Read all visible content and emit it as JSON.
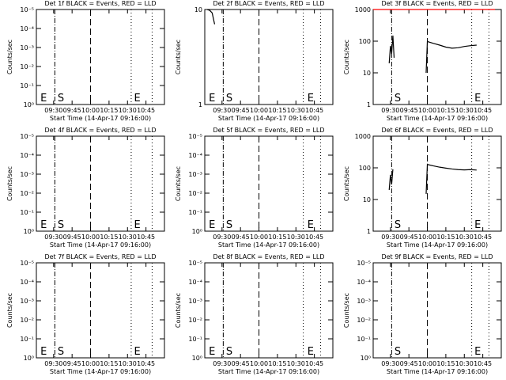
{
  "chart_data": [
    {
      "type": "line",
      "title": "Det 1f BLACK = Events, RED = LLD",
      "xlabel": "Start Time (14-Apr-17 09:16:00)",
      "ylabel": "Counts/sec",
      "xlim": [
        "09:16",
        "11:00"
      ],
      "xticks": [
        "09:30",
        "09:45",
        "10:00",
        "10:15",
        "10:30",
        "10:45"
      ],
      "ylim": [
        1,
        1e-05
      ],
      "log_y": true,
      "yticks": [
        {
          "value": 1e-05,
          "label": "10⁻⁵"
        },
        {
          "value": 0.0001,
          "label": "10⁻⁴"
        },
        {
          "value": 0.001,
          "label": "10⁻³"
        },
        {
          "value": 0.01,
          "label": "10⁻²"
        },
        {
          "value": 0.1,
          "label": "10⁻¹"
        },
        {
          "value": 1,
          "label": "10⁰"
        }
      ],
      "vlines": [
        {
          "x": "09:31",
          "style": "dashdot"
        },
        {
          "x": "10:00",
          "style": "dashed"
        },
        {
          "x": "10:33",
          "style": "dotted"
        },
        {
          "x": "10:50",
          "style": "dotted"
        }
      ],
      "annotations": [
        {
          "text": "E",
          "x": "09:18"
        },
        {
          "text": "S",
          "x": "09:32"
        },
        {
          "text": "E",
          "x": "10:34"
        }
      ],
      "series": []
    },
    {
      "type": "line",
      "title": "Det 2f BLACK = Events, RED = LLD",
      "xlabel": "Start Time (14-Apr-17 09:16:00)",
      "ylabel": "Counts/sec",
      "xlim": [
        "09:16",
        "11:00"
      ],
      "xticks": [
        "09:30",
        "09:45",
        "10:00",
        "10:15",
        "10:30",
        "10:45"
      ],
      "ylim": [
        1,
        10
      ],
      "log_y": true,
      "yticks": [
        1,
        10
      ],
      "vlines": [
        {
          "x": "09:31",
          "style": "dashdot"
        },
        {
          "x": "10:00",
          "style": "dashed"
        },
        {
          "x": "10:36",
          "style": "dotted"
        },
        {
          "x": "10:50",
          "style": "dotted"
        }
      ],
      "annotations": [
        {
          "text": "E",
          "x": "09:18"
        },
        {
          "text": "S",
          "x": "09:32"
        },
        {
          "text": "E",
          "x": "10:38"
        }
      ],
      "series": [
        {
          "color": "#000000",
          "x": [
            "09:18",
            "09:20",
            "09:22",
            "09:24"
          ],
          "values": [
            10,
            9.8,
            9.2,
            7
          ]
        }
      ]
    },
    {
      "type": "line",
      "title": "Det 3f BLACK = Events, RED = LLD",
      "xlabel": "Start Time (14-Apr-17 09:16:00)",
      "ylabel": "Counts/sec",
      "xlim": [
        "09:16",
        "11:00"
      ],
      "xticks": [
        "09:30",
        "09:45",
        "10:00",
        "10:15",
        "10:30",
        "10:45"
      ],
      "ylim": [
        1,
        1000
      ],
      "log_y": true,
      "yticks": [
        1,
        10,
        100,
        1000
      ],
      "vlines": [
        {
          "x": "09:31",
          "style": "dashdot"
        },
        {
          "x": "10:00",
          "style": "dashed"
        },
        {
          "x": "10:36",
          "style": "dotted"
        },
        {
          "x": "10:50",
          "style": "dotted"
        }
      ],
      "annotations": [
        {
          "text": "S",
          "x": "09:32"
        },
        {
          "text": "E",
          "x": "10:37"
        }
      ],
      "series": [
        {
          "color": "#ff0000",
          "x": [
            "09:16",
            "10:55"
          ],
          "values": [
            1000,
            1000
          ]
        },
        {
          "color": "#000000",
          "x": [
            "09:29",
            "09:30",
            "09:31",
            "09:32",
            "09:33",
            "09:34",
            "09:59",
            "10:00",
            "10:01",
            "10:05",
            "10:10",
            "10:15",
            "10:20",
            "10:25",
            "10:30",
            "10:35",
            "10:40"
          ],
          "values": [
            20,
            70,
            40,
            150,
            30,
            null,
            10,
            100,
            95,
            85,
            75,
            65,
            60,
            62,
            68,
            72,
            75
          ]
        }
      ]
    },
    {
      "type": "line",
      "title": "Det 4f BLACK = Events, RED = LLD",
      "xlabel": "Start Time (14-Apr-17 09:16:00)",
      "ylabel": "Counts/sec",
      "xlim": [
        "09:16",
        "11:00"
      ],
      "xticks": [
        "09:30",
        "09:45",
        "10:00",
        "10:15",
        "10:30",
        "10:45"
      ],
      "ylim": [
        1,
        1e-05
      ],
      "log_y": true,
      "yticks": [
        {
          "value": 1e-05,
          "label": "10⁻⁵"
        },
        {
          "value": 0.0001,
          "label": "10⁻⁴"
        },
        {
          "value": 0.001,
          "label": "10⁻³"
        },
        {
          "value": 0.01,
          "label": "10⁻²"
        },
        {
          "value": 0.1,
          "label": "10⁻¹"
        },
        {
          "value": 1,
          "label": "10⁰"
        }
      ],
      "vlines": [
        {
          "x": "09:31",
          "style": "dashdot"
        },
        {
          "x": "10:00",
          "style": "dashed"
        },
        {
          "x": "10:33",
          "style": "dotted"
        },
        {
          "x": "10:50",
          "style": "dotted"
        }
      ],
      "annotations": [
        {
          "text": "E",
          "x": "09:18"
        },
        {
          "text": "S",
          "x": "09:32"
        },
        {
          "text": "E",
          "x": "10:34"
        }
      ],
      "series": []
    },
    {
      "type": "line",
      "title": "Det 5f BLACK = Events, RED = LLD",
      "xlabel": "Start Time (14-Apr-17 09:16:00)",
      "ylabel": "Counts/sec",
      "xlim": [
        "09:16",
        "11:00"
      ],
      "xticks": [
        "09:30",
        "09:45",
        "10:00",
        "10:15",
        "10:30",
        "10:45"
      ],
      "ylim": [
        1,
        1e-05
      ],
      "log_y": true,
      "yticks": [
        {
          "value": 1e-05,
          "label": "10⁻⁵"
        },
        {
          "value": 0.0001,
          "label": "10⁻⁴"
        },
        {
          "value": 0.001,
          "label": "10⁻³"
        },
        {
          "value": 0.01,
          "label": "10⁻²"
        },
        {
          "value": 0.1,
          "label": "10⁻¹"
        },
        {
          "value": 1,
          "label": "10⁰"
        }
      ],
      "vlines": [
        {
          "x": "09:31",
          "style": "dashdot"
        },
        {
          "x": "10:00",
          "style": "dashed"
        },
        {
          "x": "10:36",
          "style": "dotted"
        },
        {
          "x": "10:50",
          "style": "dotted"
        }
      ],
      "annotations": [
        {
          "text": "E",
          "x": "09:18"
        },
        {
          "text": "S",
          "x": "09:32"
        },
        {
          "text": "E",
          "x": "10:38"
        }
      ],
      "series": []
    },
    {
      "type": "line",
      "title": "Det 6f BLACK = Events, RED = LLD",
      "xlabel": "Start Time (14-Apr-17 09:16:00)",
      "ylabel": "Counts/sec",
      "xlim": [
        "09:16",
        "11:00"
      ],
      "xticks": [
        "09:30",
        "09:45",
        "10:00",
        "10:15",
        "10:30",
        "10:45"
      ],
      "ylim": [
        1,
        1000
      ],
      "log_y": true,
      "yticks": [
        1,
        10,
        100,
        1000
      ],
      "vlines": [
        {
          "x": "09:31",
          "style": "dashdot"
        },
        {
          "x": "10:00",
          "style": "dashed"
        },
        {
          "x": "10:36",
          "style": "dotted"
        },
        {
          "x": "10:50",
          "style": "dotted"
        }
      ],
      "annotations": [
        {
          "text": "S",
          "x": "09:32"
        },
        {
          "text": "E",
          "x": "10:37"
        }
      ],
      "series": [
        {
          "color": "#000000",
          "x": [
            "09:29",
            "09:30",
            "09:31",
            "09:32",
            "09:33",
            "09:59",
            "10:00",
            "10:01",
            "10:05",
            "10:10",
            "10:15",
            "10:20",
            "10:25",
            "10:30",
            "10:35",
            "10:40"
          ],
          "values": [
            20,
            60,
            30,
            90,
            null,
            15,
            130,
            125,
            115,
            105,
            98,
            92,
            88,
            86,
            88,
            85
          ]
        }
      ]
    },
    {
      "type": "line",
      "title": "Det 7f BLACK = Events, RED = LLD",
      "xlabel": "Start Time (14-Apr-17 09:16:00)",
      "ylabel": "Counts/sec",
      "xlim": [
        "09:16",
        "11:00"
      ],
      "xticks": [
        "09:30",
        "09:45",
        "10:00",
        "10:15",
        "10:30",
        "10:45"
      ],
      "ylim": [
        1,
        1e-05
      ],
      "log_y": true,
      "yticks": [
        {
          "value": 1e-05,
          "label": "10⁻⁵"
        },
        {
          "value": 0.0001,
          "label": "10⁻⁴"
        },
        {
          "value": 0.001,
          "label": "10⁻³"
        },
        {
          "value": 0.01,
          "label": "10⁻²"
        },
        {
          "value": 0.1,
          "label": "10⁻¹"
        },
        {
          "value": 1,
          "label": "10⁰"
        }
      ],
      "vlines": [
        {
          "x": "09:31",
          "style": "dashdot"
        },
        {
          "x": "10:00",
          "style": "dashed"
        },
        {
          "x": "10:33",
          "style": "dotted"
        },
        {
          "x": "10:50",
          "style": "dotted"
        }
      ],
      "annotations": [
        {
          "text": "E",
          "x": "09:18"
        },
        {
          "text": "S",
          "x": "09:32"
        },
        {
          "text": "E",
          "x": "10:34"
        }
      ],
      "series": []
    },
    {
      "type": "line",
      "title": "Det 8f BLACK = Events, RED = LLD",
      "xlabel": "Start Time (14-Apr-17 09:16:00)",
      "ylabel": "Counts/sec",
      "xlim": [
        "09:16",
        "11:00"
      ],
      "xticks": [
        "09:30",
        "09:45",
        "10:00",
        "10:15",
        "10:30",
        "10:45"
      ],
      "ylim": [
        1,
        1e-05
      ],
      "log_y": true,
      "yticks": [
        {
          "value": 1e-05,
          "label": "10⁻⁵"
        },
        {
          "value": 0.0001,
          "label": "10⁻⁴"
        },
        {
          "value": 0.001,
          "label": "10⁻³"
        },
        {
          "value": 0.01,
          "label": "10⁻²"
        },
        {
          "value": 0.1,
          "label": "10⁻¹"
        },
        {
          "value": 1,
          "label": "10⁰"
        }
      ],
      "vlines": [
        {
          "x": "09:31",
          "style": "dashdot"
        },
        {
          "x": "10:00",
          "style": "dashed"
        },
        {
          "x": "10:36",
          "style": "dotted"
        },
        {
          "x": "10:50",
          "style": "dotted"
        }
      ],
      "annotations": [
        {
          "text": "E",
          "x": "09:18"
        },
        {
          "text": "S",
          "x": "09:32"
        },
        {
          "text": "E",
          "x": "10:38"
        }
      ],
      "series": []
    },
    {
      "type": "line",
      "title": "Det 9f BLACK = Events, RED = LLD",
      "xlabel": "Start Time (14-Apr-17 09:16:00)",
      "ylabel": "Counts/sec",
      "xlim": [
        "09:16",
        "11:00"
      ],
      "xticks": [
        "09:30",
        "09:45",
        "10:00",
        "10:15",
        "10:30",
        "10:45"
      ],
      "ylim": [
        1,
        1e-05
      ],
      "log_y": true,
      "yticks": [
        {
          "value": 1e-05,
          "label": "10⁻⁵"
        },
        {
          "value": 0.0001,
          "label": "10⁻⁴"
        },
        {
          "value": 0.001,
          "label": "10⁻³"
        },
        {
          "value": 0.01,
          "label": "10⁻²"
        },
        {
          "value": 0.1,
          "label": "10⁻¹"
        },
        {
          "value": 1,
          "label": "10⁰"
        }
      ],
      "vlines": [
        {
          "x": "09:31",
          "style": "dashdot"
        },
        {
          "x": "10:00",
          "style": "dashed"
        },
        {
          "x": "10:36",
          "style": "dotted"
        },
        {
          "x": "10:50",
          "style": "dotted"
        }
      ],
      "annotations": [
        {
          "text": "S",
          "x": "09:32"
        },
        {
          "text": "E",
          "x": "10:37"
        }
      ],
      "series": []
    }
  ]
}
